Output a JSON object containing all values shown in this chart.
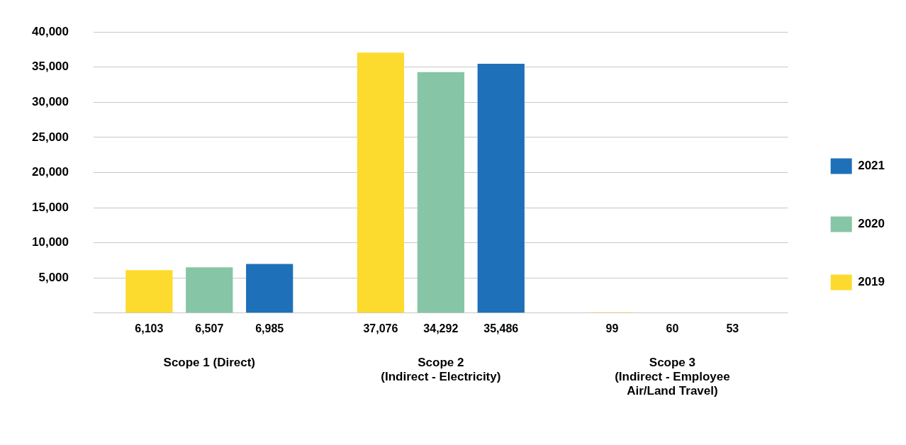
{
  "chart_data": {
    "type": "bar",
    "categories": [
      "Scope 1 (Direct)",
      "Scope 2\n(Indirect - Electricity)",
      "Scope 3\n(Indirect - Employee\nAir/Land Travel)"
    ],
    "series": [
      {
        "name": "2019",
        "color": "#fdda2e",
        "values": [
          6103,
          37076,
          99
        ],
        "value_labels": [
          "6,103",
          "37,076",
          "99"
        ]
      },
      {
        "name": "2020",
        "color": "#86c5a6",
        "values": [
          6507,
          34292,
          60
        ],
        "value_labels": [
          "6,507",
          "34,292",
          "60"
        ]
      },
      {
        "name": "2021",
        "color": "#1e70b8",
        "values": [
          6985,
          35486,
          53
        ],
        "value_labels": [
          "6,985",
          "35,486",
          "53"
        ]
      }
    ],
    "ylim": [
      0,
      40000
    ],
    "yticks": [
      {
        "value": 0,
        "label": null
      },
      {
        "value": 5000,
        "label": "5,000"
      },
      {
        "value": 10000,
        "label": "10,000"
      },
      {
        "value": 15000,
        "label": "15,000"
      },
      {
        "value": 20000,
        "label": "20,000"
      },
      {
        "value": 25000,
        "label": "25,000"
      },
      {
        "value": 30000,
        "label": "30,000"
      },
      {
        "value": 35000,
        "label": "35,000"
      },
      {
        "value": 40000,
        "label": "40,000"
      }
    ],
    "grid": "y",
    "legend": "right"
  }
}
